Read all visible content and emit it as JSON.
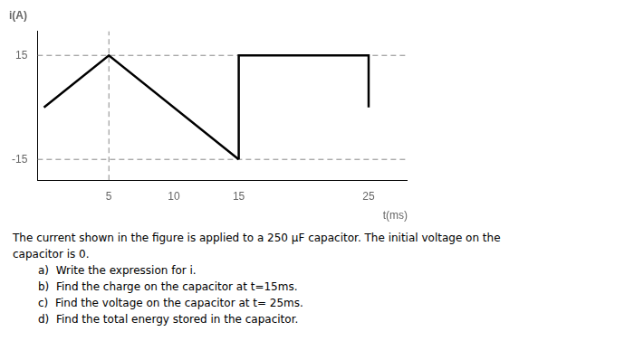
{
  "chart_data": {
    "type": "line",
    "title": "i(A)",
    "xlabel": "t(ms)",
    "series": [
      {
        "x": [
          0,
          5,
          15,
          15
        ],
        "values": [
          0,
          15,
          -15,
          -15
        ],
        "color": "#000000",
        "line_style": "solid"
      },
      {
        "x": [
          15,
          15,
          25,
          25
        ],
        "values": [
          -15,
          15,
          15,
          0
        ],
        "color": "#000000",
        "line_style": "solid"
      },
      {
        "x": [
          -0.5,
          28
        ],
        "values": [
          15,
          15
        ],
        "color": "#888888",
        "line_style": "dashed"
      },
      {
        "x": [
          -0.5,
          28
        ],
        "values": [
          -15,
          -15
        ],
        "color": "#888888",
        "line_style": "dashed"
      },
      {
        "x": [
          5,
          5
        ],
        "values": [
          -21,
          22
        ],
        "color": "#888888",
        "line_style": "dashed"
      }
    ],
    "xlim": [
      -0.5,
      28
    ],
    "xticks": [
      5,
      10,
      15,
      25
    ],
    "ylim": [
      -21,
      22
    ],
    "yticks": [
      -15,
      15
    ],
    "grid": false,
    "annotations": [
      "The current shown in the figure is applied to a 250 μF capacitor. The initial voltage on the",
      "capacitor is 0.",
      "a)  Write the expression for i.",
      "b)  Find the charge on the capacitor at t=15ms.",
      "c)  Find the voltage on the capacitor at t= 25ms.",
      "d)  Find the total energy stored in the capacitor."
    ]
  }
}
